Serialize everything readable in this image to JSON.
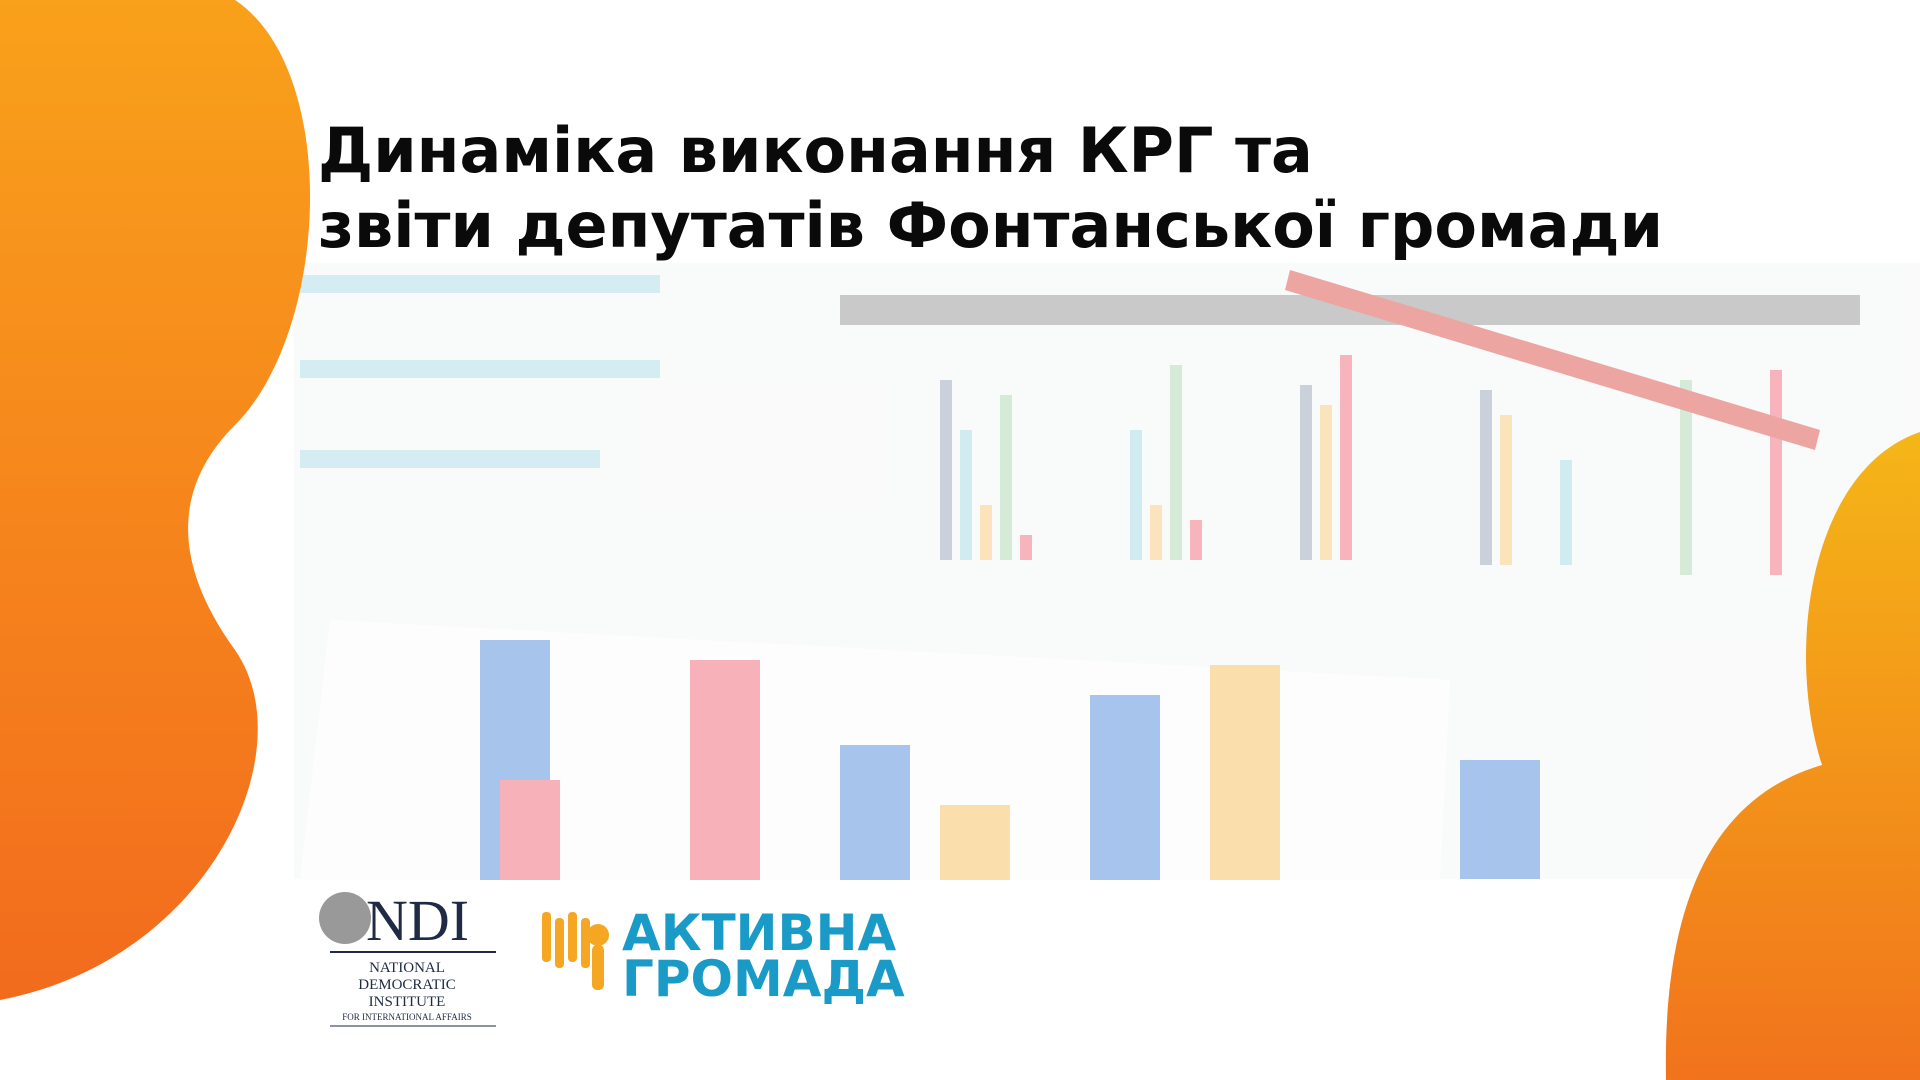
{
  "title": {
    "line1": "Динаміка виконання КРГ та",
    "line2": "звіти депутатів Фонтанської громади"
  },
  "logos": {
    "ndi": {
      "mark": "NDI",
      "line1": "NATIONAL",
      "line2": "DEMOCRATIC",
      "line3": "INSTITUTE",
      "line4": "FOR INTERNATIONAL AFFAIRS"
    },
    "active": {
      "line1": "АКТИВНА",
      "line2": "ГРОМАДА"
    }
  }
}
